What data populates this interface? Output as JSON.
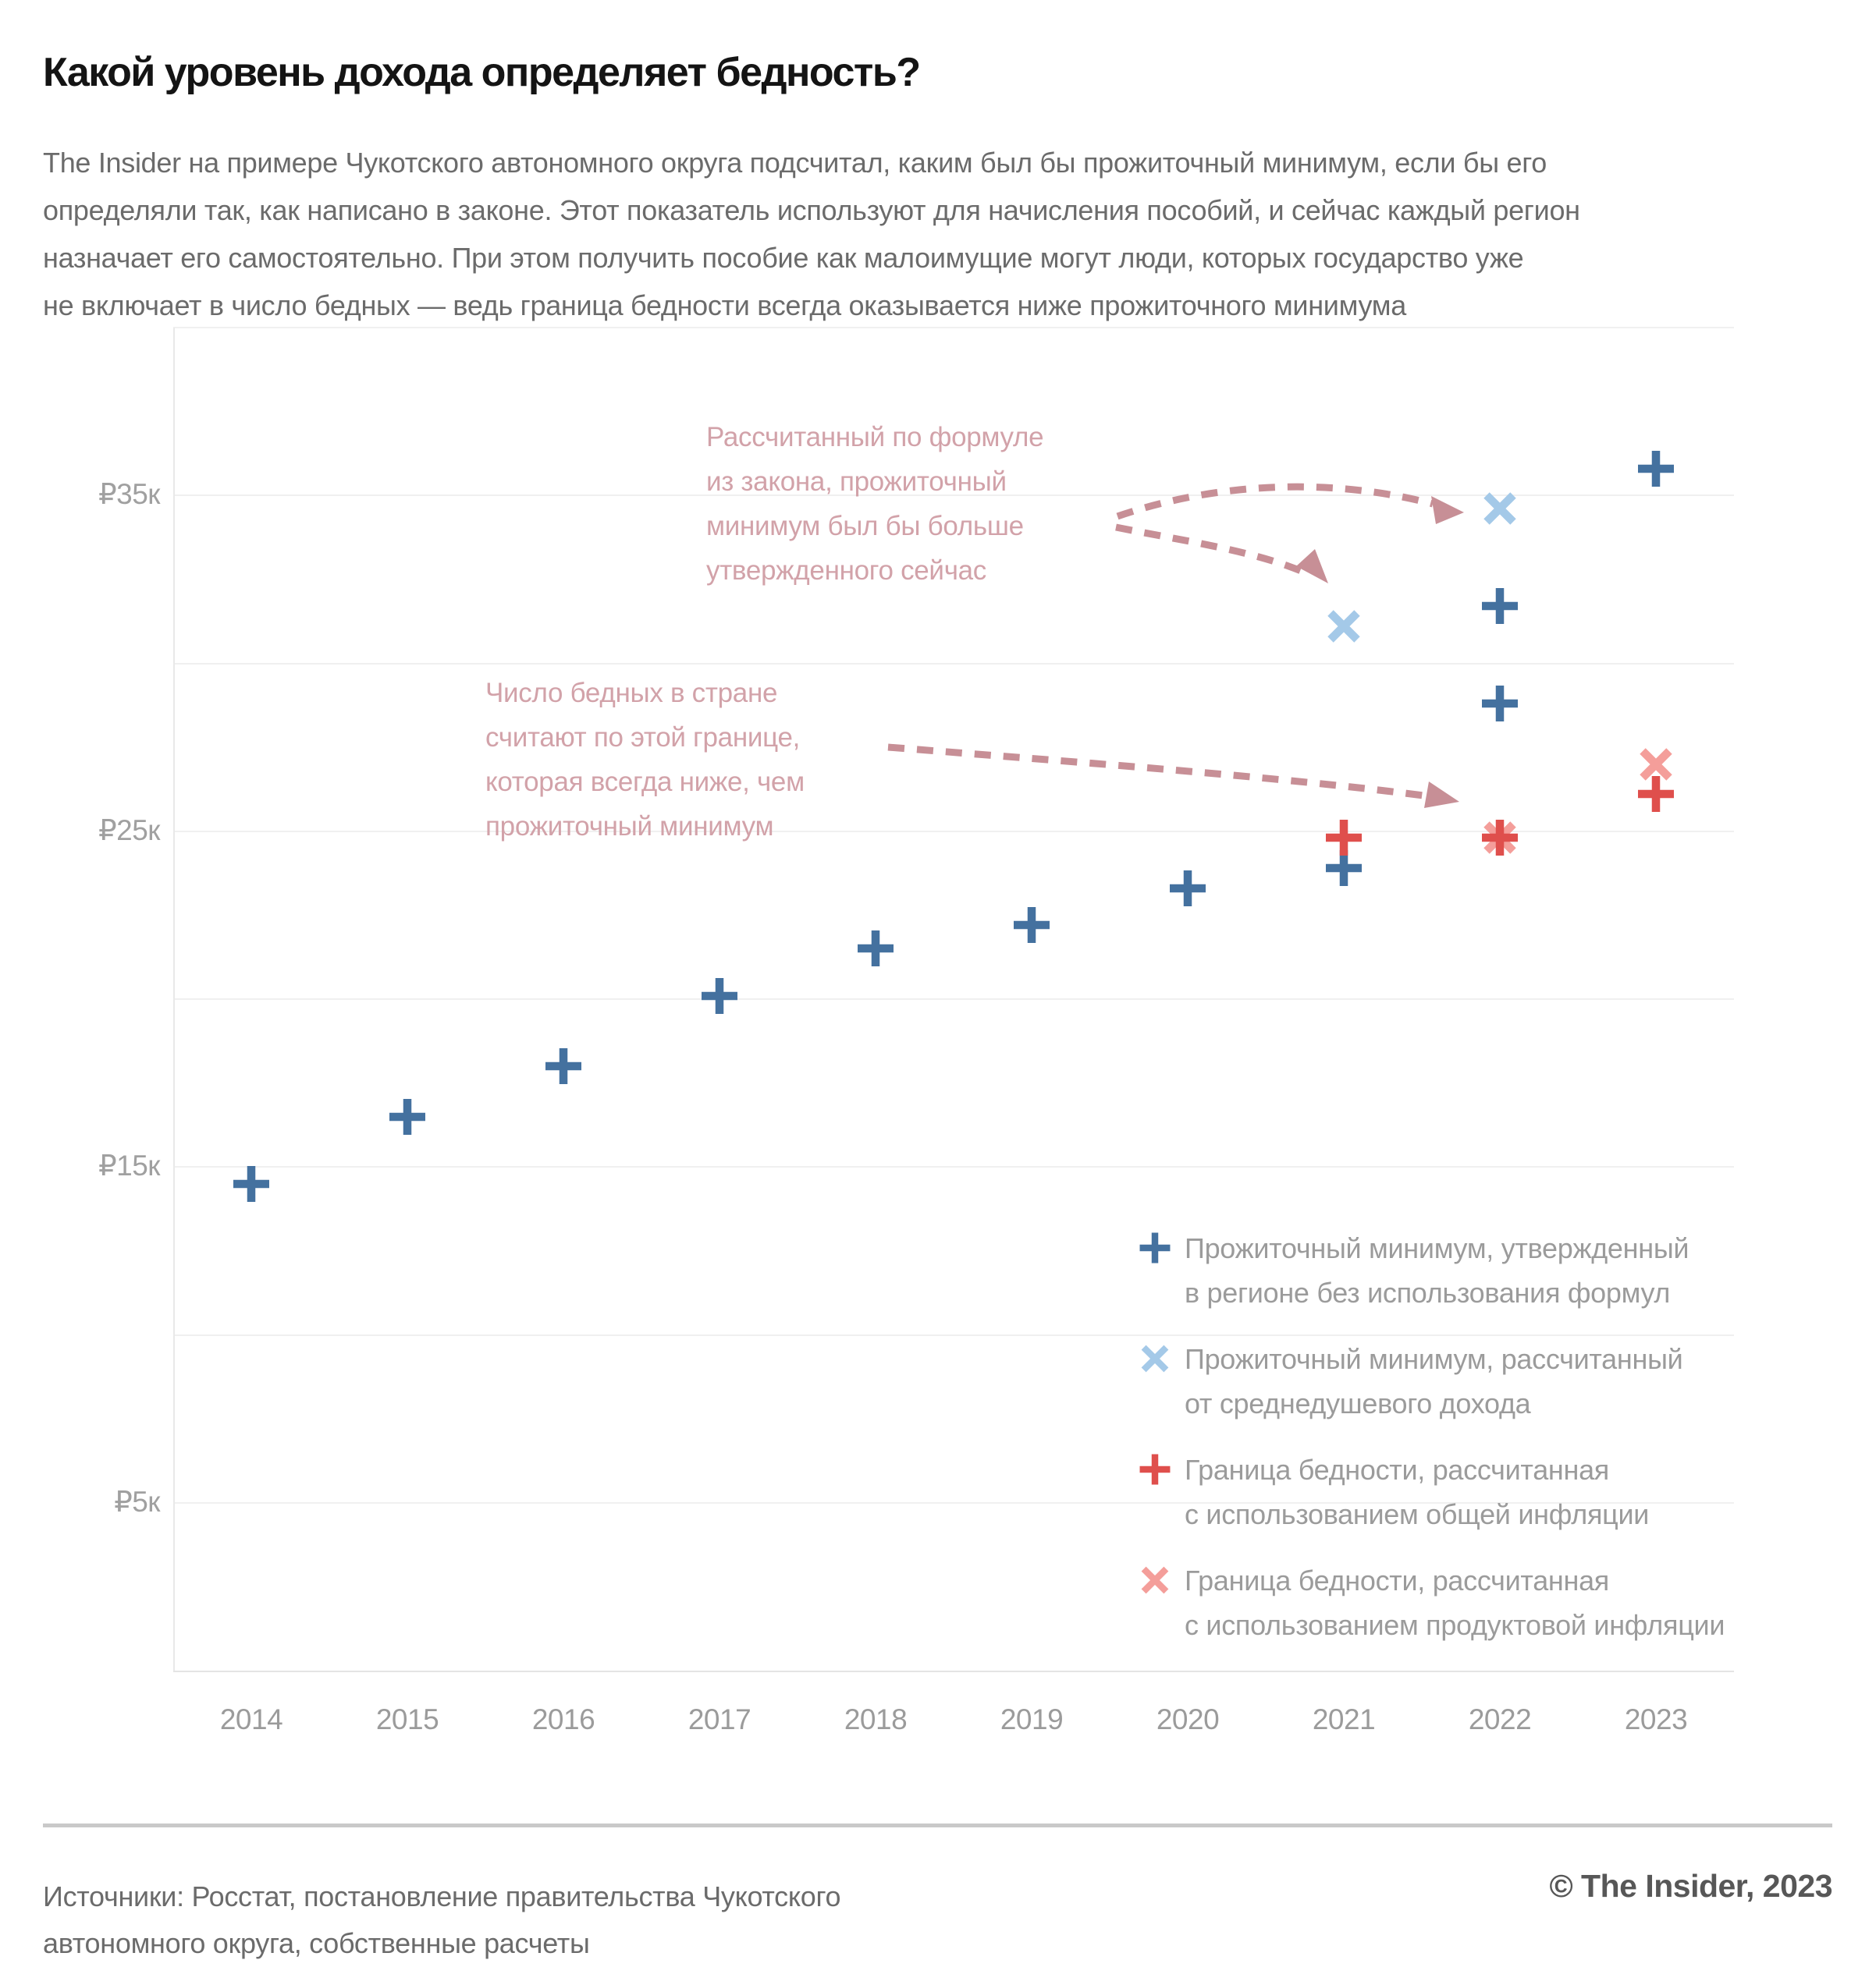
{
  "header": {
    "title": "Какой уровень дохода определяет бедность?",
    "subtitle": [
      "The Insider на примере Чукотского автономного округа подсчитал, каким был бы прожиточный минимум, если бы его",
      "определяли так, как написано в законе. Этот показатель используют для начисления пособий, и сейчас каждый регион",
      "назначает его самостоятельно. При этом получить пособие как малоимущие могут люди, которых государство уже",
      "не включает в число бедных — ведь граница бедности всегда оказывается ниже прожиточного минимума"
    ]
  },
  "chart_data": {
    "type": "scatter",
    "currency_unit": "₽",
    "x": {
      "categories": [
        "2014",
        "2015",
        "2016",
        "2017",
        "2018",
        "2019",
        "2020",
        "2021",
        "2022",
        "2023"
      ]
    },
    "y": {
      "min": 0,
      "max": 40000,
      "gridlines": [
        40000,
        35000,
        30000,
        25000,
        20000,
        15000,
        10000,
        5000
      ],
      "ticks": [
        {
          "value": 35000,
          "label": "₽35к"
        },
        {
          "value": 25000,
          "label": "₽25к"
        },
        {
          "value": 15000,
          "label": "₽15к"
        },
        {
          "value": 5000,
          "label": "₽5к"
        }
      ]
    },
    "series": [
      {
        "name": "Прожиточный минимум, утвержденный в регионе без использования формул",
        "marker": "plus",
        "color": "#44719f",
        "z": 0,
        "points": [
          [
            2014,
            14500
          ],
          [
            2015,
            16500
          ],
          [
            2016,
            18000
          ],
          [
            2017,
            20100
          ],
          [
            2018,
            21500
          ],
          [
            2019,
            22200
          ],
          [
            2020,
            23300
          ],
          [
            2021,
            23900
          ],
          [
            2022,
            28800
          ],
          [
            2022,
            31700
          ],
          [
            2023,
            35800
          ]
        ]
      },
      {
        "name": "Прожиточный минимум, рассчитанный от среднедушевого дохода",
        "marker": "x",
        "color": "#a4c9e8",
        "z": 0,
        "points": [
          [
            2021,
            31100
          ],
          [
            2022,
            34600
          ]
        ]
      },
      {
        "name": "Граница бедности, рассчитанная с использованием продуктовой инфляции",
        "marker": "x",
        "color": "#f49e9a",
        "z": 1,
        "points": [
          [
            2022,
            24800
          ],
          [
            2023,
            27000
          ]
        ]
      },
      {
        "name": "Граница бедности, рассчитанная с использованием общей инфляции",
        "marker": "plus",
        "color": "#df4f4c",
        "z": 2,
        "points": [
          [
            2021,
            24800
          ],
          [
            2022,
            24800
          ],
          [
            2023,
            26100
          ]
        ]
      }
    ],
    "annotations": [
      {
        "id": "formula",
        "lines": [
          "Рассчитанный по формуле",
          "из закона, прожиточный",
          "минимум был бы больше",
          "утвержденного сейчас"
        ]
      },
      {
        "id": "border",
        "lines": [
          "Число бедных в стране",
          "считают по этой границе,",
          "которая всегда ниже, чем",
          "прожиточный минимум"
        ]
      }
    ]
  },
  "legend": {
    "items": [
      {
        "marker": "plus",
        "color": "#44719f",
        "label": [
          "Прожиточный минимум, утвержденный",
          "в регионе без использования формул"
        ]
      },
      {
        "marker": "x",
        "color": "#a4c9e8",
        "label": [
          "Прожиточный минимум, рассчитанный",
          "от среднедушевого дохода"
        ]
      },
      {
        "marker": "plus",
        "color": "#df4f4c",
        "label": [
          "Граница бедности, рассчитанная",
          "с использованием общей инфляции"
        ]
      },
      {
        "marker": "x",
        "color": "#f49e9a",
        "label": [
          "Граница бедности, рассчитанная",
          "с использованием продуктовой инфляции"
        ]
      }
    ]
  },
  "footer": {
    "sources": [
      "Источники: Росстат, постановление правительства Чукотского",
      "автономного округа, собственные расчеты"
    ],
    "copyright": "© The Insider, 2023"
  },
  "colors": {
    "annotation_text": "#d2a2a9",
    "annotation_arrow": "#c78f96",
    "gridline": "#f0f0f0",
    "axis_label": "#9b9b9b"
  }
}
